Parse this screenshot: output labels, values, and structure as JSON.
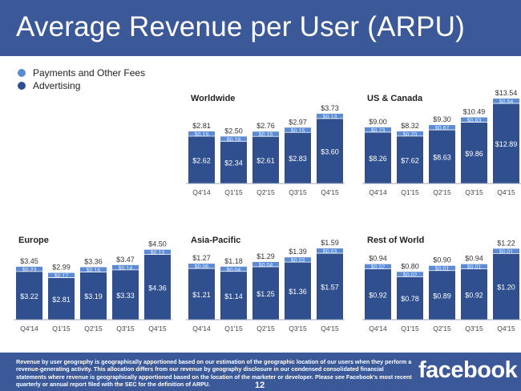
{
  "title": "Average Revenue per User (ARPU)",
  "colors": {
    "header": "#3b5998",
    "advertising": "#2f4f8f",
    "payments": "#5b8bd4",
    "text_light": "#ffffff",
    "text_dark": "#333333"
  },
  "legend": [
    {
      "name": "Payments and Other Fees",
      "color": "#5b8bd4"
    },
    {
      "name": "Advertising",
      "color": "#2f4f8f"
    }
  ],
  "chart_data": [
    {
      "type": "bar",
      "title": "Worldwide",
      "categories": [
        "Q4'14",
        "Q1'15",
        "Q2'15",
        "Q3'15",
        "Q4'15"
      ],
      "series": [
        {
          "name": "Advertising",
          "values": [
            "$2.62",
            "$2.34",
            "$2.61",
            "$2.83",
            "$3.60"
          ]
        },
        {
          "name": "Payments and Other Fees",
          "values": [
            "$0.19",
            "$0.16",
            "$0.15",
            "$0.15",
            "$0.13"
          ]
        }
      ],
      "totals": [
        "$2.81",
        "$2.50",
        "$2.76",
        "$2.97",
        "$3.73"
      ]
    },
    {
      "type": "bar",
      "title": "US & Canada",
      "categories": [
        "Q4'14",
        "Q1'15",
        "Q2'15",
        "Q3'15",
        "Q4'15"
      ],
      "series": [
        {
          "name": "Advertising",
          "values": [
            "$8.26",
            "$7.62",
            "$8.63",
            "$9.86",
            "$12.89"
          ]
        },
        {
          "name": "Payments and Other Fees",
          "values": [
            "$0.73",
            "$0.70",
            "$0.67",
            "$0.63",
            "$0.64"
          ]
        }
      ],
      "totals": [
        "$9.00",
        "$8.32",
        "$9.30",
        "$10.49",
        "$13.54"
      ]
    },
    {
      "type": "bar",
      "title": "Europe",
      "categories": [
        "Q4'14",
        "Q1'15",
        "Q2'15",
        "Q3'15",
        "Q4'15"
      ],
      "series": [
        {
          "name": "Advertising",
          "values": [
            "$3.22",
            "$2.81",
            "$3.19",
            "$3.33",
            "$4.36"
          ]
        },
        {
          "name": "Payments and Other Fees",
          "values": [
            "$0.23",
            "$0.17",
            "$0.16",
            "$0.14",
            "$0.13"
          ]
        }
      ],
      "totals": [
        "$3.45",
        "$2.99",
        "$3.36",
        "$3.47",
        "$4.50"
      ]
    },
    {
      "type": "bar",
      "title": "Asia-Pacific",
      "categories": [
        "Q4'14",
        "Q1'15",
        "Q2'15",
        "Q3'15",
        "Q4'15"
      ],
      "series": [
        {
          "name": "Advertising",
          "values": [
            "$1.21",
            "$1.14",
            "$1.25",
            "$1.36",
            "$1.57"
          ]
        },
        {
          "name": "Payments and Other Fees",
          "values": [
            "$0.06",
            "$0.04",
            "$0.04",
            "$0.03",
            "$0.03"
          ]
        }
      ],
      "totals": [
        "$1.27",
        "$1.18",
        "$1.29",
        "$1.39",
        "$1.59"
      ]
    },
    {
      "type": "bar",
      "title": "Rest of World",
      "categories": [
        "Q4'14",
        "Q1'15",
        "Q2'15",
        "Q3'15",
        "Q4'15"
      ],
      "series": [
        {
          "name": "Advertising",
          "values": [
            "$0.92",
            "$0.78",
            "$0.89",
            "$0.92",
            "$1.20"
          ]
        },
        {
          "name": "Payments and Other Fees",
          "values": [
            "$0.02",
            "$0.02",
            "$0.01",
            "$0.01",
            "$0.01"
          ]
        }
      ],
      "totals": [
        "$0.94",
        "$0.80",
        "$0.90",
        "$0.94",
        "$1.22"
      ]
    }
  ],
  "footnote": "Revenue by user geography is geographically apportioned based on our estimation of the geographic location of our users when they perform a revenue-generating activity. This allocation differs from our revenue by geography disclosure in our condensed consolidated financial statements where revenue is geographically apportioned based on the location of the marketer or developer. Please see Facebook's most recent quarterly or annual report filed with the SEC for the definition of ARPU.",
  "brand": "facebook",
  "page_number": "12"
}
